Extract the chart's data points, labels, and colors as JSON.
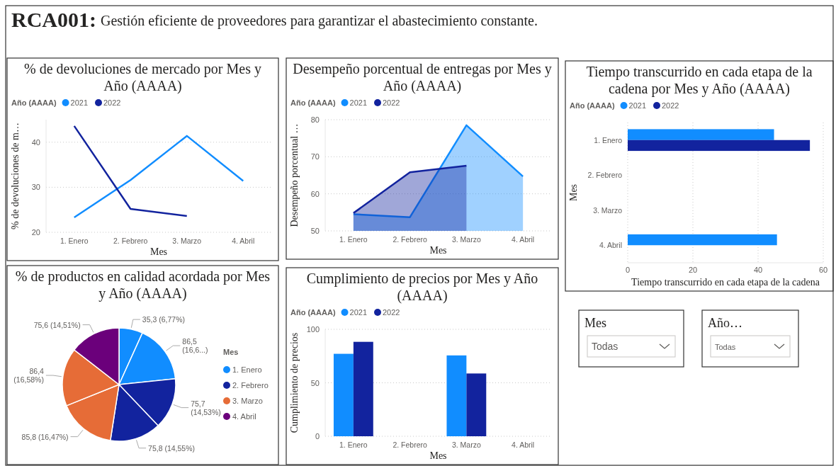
{
  "chart_data": [
    {
      "type": "other",
      "title": "RCA001:",
      "subtitle": "Gestión eficiente de proveedores para garantizar el abastecimiento constante."
    },
    {
      "type": "line",
      "title": "% de devoluciones de mercado por Mes y Año (AAAA)",
      "legend_title": "Año (AAAA)",
      "xlabel": "Mes",
      "ylabel": "% de devoluciones de m…",
      "categories": [
        "1. Enero",
        "2. Febrero",
        "3. Marzo",
        "4. Abril"
      ],
      "series": [
        {
          "name": "2021",
          "color": "#118dff",
          "values": [
            23.3,
            31.6,
            41.4,
            31.4
          ]
        },
        {
          "name": "2022",
          "color": "#12239e",
          "values": [
            43.6,
            25.2,
            23.6,
            null
          ]
        }
      ],
      "ylim": [
        20,
        45
      ],
      "yticks": [
        20,
        30,
        40
      ],
      "grid": "y",
      "legend": "top left"
    },
    {
      "type": "area",
      "title": "Desempeño porcentual de entregas por Mes y Año (AAAA)",
      "legend_title": "Año (AAAA)",
      "xlabel": "Mes",
      "ylabel": "Desempeño porcentual …",
      "categories": [
        "1. Enero",
        "2. Febrero",
        "3. Marzo",
        "4. Abril"
      ],
      "series": [
        {
          "name": "2021",
          "color": "#118dff",
          "values": [
            54.5,
            53.7,
            78.5,
            64.7
          ]
        },
        {
          "name": "2022",
          "color": "#12239e",
          "values": [
            54.8,
            65.8,
            67.6,
            null
          ]
        }
      ],
      "ylim": [
        50,
        80
      ],
      "yticks": [
        50,
        60,
        70,
        80
      ],
      "grid": "y",
      "legend": "top left"
    },
    {
      "type": "bar",
      "orientation": "horizontal",
      "title": "Tiempo transcurrido en cada etapa de la cadena por Mes y Año (AAAA)",
      "legend_title": "Año (AAAA)",
      "xlabel": "Tiempo transcurrido en cada etapa de la cadena",
      "ylabel": "Mes",
      "categories": [
        "1. Enero",
        "2. Febrero",
        "3. Marzo",
        "4. Abril"
      ],
      "series": [
        {
          "name": "2021",
          "color": "#118dff",
          "values": [
            44.9,
            null,
            null,
            45.8
          ]
        },
        {
          "name": "2022",
          "color": "#12239e",
          "values": [
            55.9,
            null,
            null,
            null
          ]
        }
      ],
      "xlim": [
        0,
        60
      ],
      "xticks": [
        0,
        20,
        40,
        60
      ],
      "grid": "x",
      "legend": "top left"
    },
    {
      "type": "pie",
      "title": "% de productos en calidad acordada por Mes y Año (AAAA)",
      "legend_title": "Mes",
      "categories": [
        "1. Enero",
        "1. Enero",
        "2. Febrero",
        "2. Febrero",
        "3. Marzo",
        "3. Marzo",
        "4. Abril"
      ],
      "values": [
        35.3,
        86.5,
        75.7,
        75.8,
        85.8,
        86.4,
        75.6
      ],
      "colors": [
        "#118dff",
        "#118dff",
        "#12239e",
        "#12239e",
        "#e66c37",
        "#e66c37",
        "#6b007b"
      ],
      "value_labels": [
        "35,3 (6,77%)",
        "86,5 (16,6...)",
        "75,7 (14,53%)",
        "75,8 (14,55%)",
        "85,8 (16,47%)",
        "86,4 (16,58%)",
        "75,6 (14,51%)"
      ],
      "legend": "right"
    },
    {
      "type": "bar",
      "title": "Cumplimiento de precios por Mes y Año (AAAA)",
      "legend_title": "Año (AAAA)",
      "xlabel": "Mes",
      "ylabel": "Cumplimiento de precios",
      "categories": [
        "1. Enero",
        "2. Febrero",
        "3. Marzo",
        "4. Abril"
      ],
      "series": [
        {
          "name": "2021",
          "color": "#118dff",
          "values": [
            77.1,
            null,
            75.6,
            null
          ]
        },
        {
          "name": "2022",
          "color": "#12239e",
          "values": [
            88.3,
            null,
            58.7,
            null
          ]
        }
      ],
      "ylim": [
        0,
        100
      ],
      "yticks": [
        0,
        50,
        100
      ],
      "grid": "y",
      "legend": "top left"
    },
    {
      "type": "other",
      "title": "Mes",
      "annotations": [
        "Todas"
      ]
    },
    {
      "type": "other",
      "title": "Año…",
      "annotations": [
        "Todas"
      ]
    }
  ]
}
